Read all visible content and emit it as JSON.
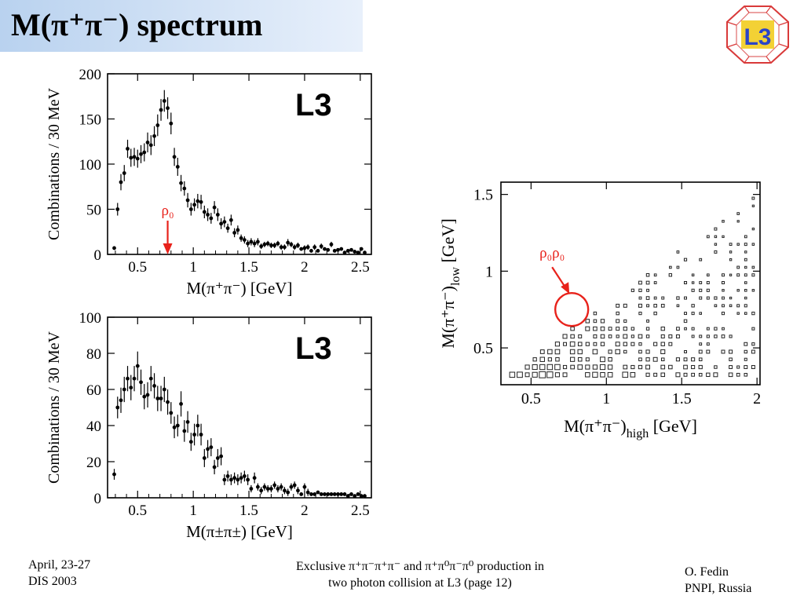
{
  "slide": {
    "title": "M(π⁺π⁻) spectrum",
    "logo_text": "L3"
  },
  "footer": {
    "left_line1": "April, 23-27",
    "left_line2": "DIS 2003",
    "center_line1": "Exclusive    π⁺π⁻π⁺π⁻ and π⁺π⁰π⁻π⁰ production in",
    "center_line2": "two photon collision at L3  (page 12)",
    "right_line1": "O. Fedin",
    "right_line2": "PNPI, Russia"
  },
  "chart_data": [
    {
      "type": "scatter",
      "tag": "L3",
      "xlabel": "M(π⁺π⁻) [GeV]",
      "ylabel": "Combinations / 30 MeV",
      "xlim": [
        0.23,
        2.6
      ],
      "ylim": [
        0,
        200
      ],
      "xticks": [
        0.5,
        1,
        1.5,
        2,
        2.5
      ],
      "xtick_labels": [
        "0.5",
        "1",
        "1.5",
        "2",
        "2.5"
      ],
      "yticks": [
        0,
        50,
        100,
        150,
        200
      ],
      "ytick_labels": [
        "0",
        "50",
        "100",
        "150",
        "200"
      ],
      "annotation": {
        "text": "ρ₀",
        "x": 0.77,
        "color": "#e8221b"
      },
      "points": [
        {
          "x": 0.29,
          "y": 7,
          "e": 2
        },
        {
          "x": 0.32,
          "y": 50,
          "e": 7
        },
        {
          "x": 0.35,
          "y": 80,
          "e": 9
        },
        {
          "x": 0.38,
          "y": 90,
          "e": 9
        },
        {
          "x": 0.41,
          "y": 117,
          "e": 10
        },
        {
          "x": 0.44,
          "y": 107,
          "e": 10
        },
        {
          "x": 0.47,
          "y": 108,
          "e": 10
        },
        {
          "x": 0.5,
          "y": 106,
          "e": 10
        },
        {
          "x": 0.53,
          "y": 111,
          "e": 10
        },
        {
          "x": 0.56,
          "y": 113,
          "e": 10
        },
        {
          "x": 0.59,
          "y": 124,
          "e": 11
        },
        {
          "x": 0.62,
          "y": 121,
          "e": 11
        },
        {
          "x": 0.65,
          "y": 131,
          "e": 11
        },
        {
          "x": 0.68,
          "y": 143,
          "e": 12
        },
        {
          "x": 0.71,
          "y": 160,
          "e": 12
        },
        {
          "x": 0.74,
          "y": 170,
          "e": 12
        },
        {
          "x": 0.77,
          "y": 162,
          "e": 12
        },
        {
          "x": 0.8,
          "y": 145,
          "e": 12
        },
        {
          "x": 0.83,
          "y": 108,
          "e": 10
        },
        {
          "x": 0.86,
          "y": 97,
          "e": 10
        },
        {
          "x": 0.89,
          "y": 79,
          "e": 9
        },
        {
          "x": 0.92,
          "y": 73,
          "e": 8
        },
        {
          "x": 0.95,
          "y": 60,
          "e": 8
        },
        {
          "x": 0.98,
          "y": 50,
          "e": 7
        },
        {
          "x": 1.01,
          "y": 55,
          "e": 7
        },
        {
          "x": 1.04,
          "y": 59,
          "e": 8
        },
        {
          "x": 1.07,
          "y": 58,
          "e": 8
        },
        {
          "x": 1.1,
          "y": 47,
          "e": 7
        },
        {
          "x": 1.13,
          "y": 44,
          "e": 7
        },
        {
          "x": 1.16,
          "y": 40,
          "e": 6
        },
        {
          "x": 1.19,
          "y": 52,
          "e": 7
        },
        {
          "x": 1.22,
          "y": 44,
          "e": 7
        },
        {
          "x": 1.25,
          "y": 34,
          "e": 6
        },
        {
          "x": 1.28,
          "y": 36,
          "e": 6
        },
        {
          "x": 1.31,
          "y": 29,
          "e": 5
        },
        {
          "x": 1.34,
          "y": 38,
          "e": 6
        },
        {
          "x": 1.37,
          "y": 24,
          "e": 5
        },
        {
          "x": 1.4,
          "y": 27,
          "e": 5
        },
        {
          "x": 1.43,
          "y": 18,
          "e": 4
        },
        {
          "x": 1.46,
          "y": 16,
          "e": 4
        },
        {
          "x": 1.49,
          "y": 12,
          "e": 4
        },
        {
          "x": 1.52,
          "y": 14,
          "e": 4
        },
        {
          "x": 1.55,
          "y": 12,
          "e": 4
        },
        {
          "x": 1.58,
          "y": 14,
          "e": 4
        },
        {
          "x": 1.61,
          "y": 9,
          "e": 3
        },
        {
          "x": 1.64,
          "y": 11,
          "e": 3
        },
        {
          "x": 1.67,
          "y": 12,
          "e": 3
        },
        {
          "x": 1.7,
          "y": 10,
          "e": 3
        },
        {
          "x": 1.73,
          "y": 10,
          "e": 3
        },
        {
          "x": 1.76,
          "y": 12,
          "e": 3
        },
        {
          "x": 1.79,
          "y": 8,
          "e": 3
        },
        {
          "x": 1.82,
          "y": 8,
          "e": 3
        },
        {
          "x": 1.85,
          "y": 13,
          "e": 4
        },
        {
          "x": 1.88,
          "y": 11,
          "e": 3
        },
        {
          "x": 1.91,
          "y": 8,
          "e": 3
        },
        {
          "x": 1.94,
          "y": 10,
          "e": 3
        },
        {
          "x": 1.97,
          "y": 6,
          "e": 2
        },
        {
          "x": 2.0,
          "y": 7,
          "e": 3
        },
        {
          "x": 2.03,
          "y": 8,
          "e": 3
        },
        {
          "x": 2.06,
          "y": 4,
          "e": 2
        },
        {
          "x": 2.09,
          "y": 8,
          "e": 3
        },
        {
          "x": 2.12,
          "y": 4,
          "e": 2
        },
        {
          "x": 2.15,
          "y": 9,
          "e": 3
        },
        {
          "x": 2.18,
          "y": 6,
          "e": 2
        },
        {
          "x": 2.21,
          "y": 5,
          "e": 2
        },
        {
          "x": 2.24,
          "y": 11,
          "e": 3
        },
        {
          "x": 2.27,
          "y": 4,
          "e": 2
        },
        {
          "x": 2.3,
          "y": 5,
          "e": 2
        },
        {
          "x": 2.33,
          "y": 6,
          "e": 2
        },
        {
          "x": 2.36,
          "y": 2,
          "e": 1
        },
        {
          "x": 2.39,
          "y": 4,
          "e": 2
        },
        {
          "x": 2.42,
          "y": 5,
          "e": 2
        },
        {
          "x": 2.45,
          "y": 3,
          "e": 2
        },
        {
          "x": 2.48,
          "y": 2,
          "e": 1
        },
        {
          "x": 2.51,
          "y": 6,
          "e": 2
        },
        {
          "x": 2.54,
          "y": 2,
          "e": 1
        }
      ]
    },
    {
      "type": "scatter",
      "tag": "L3",
      "xlabel": "M(π±π±) [GeV]",
      "ylabel": "Combinations / 30 MeV",
      "xlim": [
        0.23,
        2.6
      ],
      "ylim": [
        0,
        100
      ],
      "xticks": [
        0.5,
        1,
        1.5,
        2,
        2.5
      ],
      "xtick_labels": [
        "0.5",
        "1",
        "1.5",
        "2",
        "2.5"
      ],
      "yticks": [
        0,
        20,
        40,
        60,
        80,
        100
      ],
      "ytick_labels": [
        "0",
        "20",
        "40",
        "60",
        "80",
        "100"
      ],
      "points": [
        {
          "x": 0.29,
          "y": 13,
          "e": 3
        },
        {
          "x": 0.32,
          "y": 50,
          "e": 6
        },
        {
          "x": 0.35,
          "y": 54,
          "e": 7
        },
        {
          "x": 0.38,
          "y": 60,
          "e": 7
        },
        {
          "x": 0.41,
          "y": 66,
          "e": 7
        },
        {
          "x": 0.44,
          "y": 61,
          "e": 7
        },
        {
          "x": 0.47,
          "y": 66,
          "e": 7
        },
        {
          "x": 0.5,
          "y": 73,
          "e": 8
        },
        {
          "x": 0.53,
          "y": 64,
          "e": 7
        },
        {
          "x": 0.56,
          "y": 56,
          "e": 7
        },
        {
          "x": 0.59,
          "y": 57,
          "e": 7
        },
        {
          "x": 0.62,
          "y": 66,
          "e": 7
        },
        {
          "x": 0.65,
          "y": 62,
          "e": 7
        },
        {
          "x": 0.68,
          "y": 55,
          "e": 7
        },
        {
          "x": 0.71,
          "y": 55,
          "e": 7
        },
        {
          "x": 0.74,
          "y": 60,
          "e": 7
        },
        {
          "x": 0.77,
          "y": 53,
          "e": 7
        },
        {
          "x": 0.8,
          "y": 47,
          "e": 6
        },
        {
          "x": 0.83,
          "y": 39,
          "e": 6
        },
        {
          "x": 0.86,
          "y": 40,
          "e": 6
        },
        {
          "x": 0.89,
          "y": 52,
          "e": 7
        },
        {
          "x": 0.92,
          "y": 37,
          "e": 6
        },
        {
          "x": 0.95,
          "y": 42,
          "e": 6
        },
        {
          "x": 0.98,
          "y": 31,
          "e": 5
        },
        {
          "x": 1.01,
          "y": 35,
          "e": 6
        },
        {
          "x": 1.04,
          "y": 40,
          "e": 6
        },
        {
          "x": 1.07,
          "y": 35,
          "e": 6
        },
        {
          "x": 1.1,
          "y": 22,
          "e": 5
        },
        {
          "x": 1.13,
          "y": 27,
          "e": 5
        },
        {
          "x": 1.16,
          "y": 28,
          "e": 5
        },
        {
          "x": 1.19,
          "y": 17,
          "e": 4
        },
        {
          "x": 1.22,
          "y": 22,
          "e": 5
        },
        {
          "x": 1.25,
          "y": 23,
          "e": 5
        },
        {
          "x": 1.28,
          "y": 10,
          "e": 3
        },
        {
          "x": 1.31,
          "y": 12,
          "e": 3
        },
        {
          "x": 1.34,
          "y": 10,
          "e": 3
        },
        {
          "x": 1.37,
          "y": 11,
          "e": 3
        },
        {
          "x": 1.4,
          "y": 10,
          "e": 3
        },
        {
          "x": 1.43,
          "y": 11,
          "e": 3
        },
        {
          "x": 1.46,
          "y": 12,
          "e": 3
        },
        {
          "x": 1.49,
          "y": 10,
          "e": 3
        },
        {
          "x": 1.52,
          "y": 5,
          "e": 2
        },
        {
          "x": 1.55,
          "y": 11,
          "e": 3
        },
        {
          "x": 1.58,
          "y": 6,
          "e": 2
        },
        {
          "x": 1.61,
          "y": 4,
          "e": 2
        },
        {
          "x": 1.64,
          "y": 6,
          "e": 2
        },
        {
          "x": 1.67,
          "y": 5,
          "e": 2
        },
        {
          "x": 1.7,
          "y": 5,
          "e": 2
        },
        {
          "x": 1.73,
          "y": 7,
          "e": 2
        },
        {
          "x": 1.76,
          "y": 5,
          "e": 2
        },
        {
          "x": 1.79,
          "y": 6,
          "e": 2
        },
        {
          "x": 1.82,
          "y": 4,
          "e": 2
        },
        {
          "x": 1.85,
          "y": 3,
          "e": 2
        },
        {
          "x": 1.88,
          "y": 6,
          "e": 2
        },
        {
          "x": 1.91,
          "y": 7,
          "e": 2
        },
        {
          "x": 1.94,
          "y": 4,
          "e": 2
        },
        {
          "x": 1.97,
          "y": 2,
          "e": 1
        },
        {
          "x": 2.0,
          "y": 6,
          "e": 2
        },
        {
          "x": 2.03,
          "y": 3,
          "e": 2
        },
        {
          "x": 2.06,
          "y": 2,
          "e": 1
        },
        {
          "x": 2.09,
          "y": 2,
          "e": 1
        },
        {
          "x": 2.12,
          "y": 3,
          "e": 1
        },
        {
          "x": 2.15,
          "y": 2,
          "e": 1
        },
        {
          "x": 2.18,
          "y": 2,
          "e": 1
        },
        {
          "x": 2.21,
          "y": 2,
          "e": 1
        },
        {
          "x": 2.24,
          "y": 2,
          "e": 1
        },
        {
          "x": 2.27,
          "y": 2,
          "e": 1
        },
        {
          "x": 2.3,
          "y": 2,
          "e": 1
        },
        {
          "x": 2.33,
          "y": 2,
          "e": 1
        },
        {
          "x": 2.36,
          "y": 2,
          "e": 1
        },
        {
          "x": 2.39,
          "y": 1,
          "e": 1
        },
        {
          "x": 2.42,
          "y": 2,
          "e": 1
        },
        {
          "x": 2.45,
          "y": 1,
          "e": 1
        },
        {
          "x": 2.48,
          "y": 2,
          "e": 1
        },
        {
          "x": 2.51,
          "y": 1,
          "e": 1
        },
        {
          "x": 2.54,
          "y": 1,
          "e": 1
        }
      ]
    },
    {
      "type": "heatmap",
      "xlabel_main": "M(π⁺π⁻)",
      "xlabel_sub": "high",
      "xlabel_unit": " [GeV]",
      "ylabel_main": "M(π⁺π⁻)",
      "ylabel_sub": "low",
      "ylabel_unit": " [GeV]",
      "xlim": [
        0.3,
        2.02
      ],
      "ylim": [
        0.26,
        1.58
      ],
      "xticks": [
        0.5,
        1,
        1.5,
        2
      ],
      "xtick_labels": [
        "0.5",
        "1",
        "1.5",
        "2"
      ],
      "yticks": [
        0.5,
        1,
        1.5
      ],
      "ytick_labels": [
        "0.5",
        "1",
        "1.5"
      ],
      "bin_width": 0.05,
      "annotation": {
        "text": "ρ₀ρ₀",
        "x": 0.77,
        "y": 0.75,
        "color": "#e8221b"
      }
    }
  ]
}
